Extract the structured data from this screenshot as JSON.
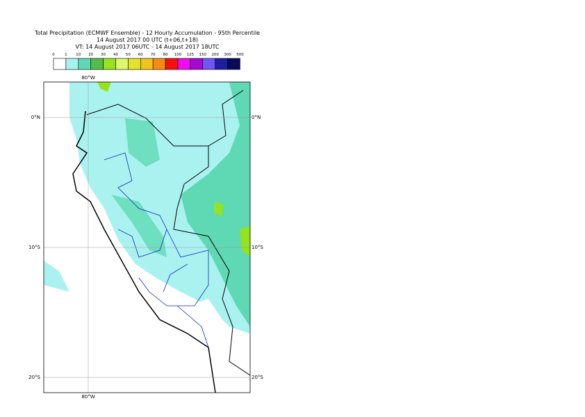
{
  "header": {
    "lines": [
      "Total Precipitation (ECMWF Ensemble) - 12 Hourly Accumulation - 95th Percentile",
      "14 August 2017 00 UTC (t+06,t+18)",
      "VT: 14 August 2017 06UTC - 14 August 2017 18UTC"
    ]
  },
  "legend": {
    "labels": [
      "0",
      "1",
      "10",
      "20",
      "30",
      "40",
      "50",
      "60",
      "70",
      "80",
      "100",
      "125",
      "150",
      "200",
      "300",
      "500"
    ],
    "colors": [
      "#ffffff",
      "#aaf2f0",
      "#5fd9b3",
      "#52bd4a",
      "#96e21e",
      "#dcf76b",
      "#e2e22a",
      "#f2c21e",
      "#f58c0f",
      "#f50f0f",
      "#f00cf0",
      "#a50ad2",
      "#7355f5",
      "#1e1ea5",
      "#0a0a5a"
    ]
  },
  "map": {
    "lon_labels": [
      "80°W",
      "80°W"
    ],
    "lat_labels_left": [
      "0°N",
      "10°S",
      "20°S"
    ],
    "lat_labels_right": [
      "0°N",
      "10°S",
      "20°S"
    ]
  }
}
